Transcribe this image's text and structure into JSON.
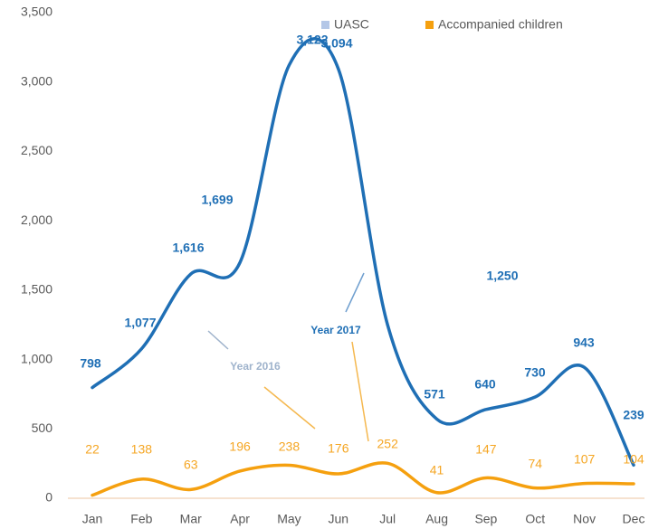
{
  "chart_data": {
    "type": "line",
    "categories": [
      "Jan",
      "Feb",
      "Mar",
      "Apr",
      "May",
      "Jun",
      "Jul",
      "Aug",
      "Sep",
      "Oct",
      "Nov",
      "Dec"
    ],
    "series": [
      {
        "name": "UASC",
        "color": "#1f6fb5",
        "legend_color": "#b4c7e7",
        "values": [
          798,
          1077,
          1616,
          1699,
          3122,
          3094,
          1250,
          571,
          640,
          730,
          943,
          239
        ],
        "value_labels": [
          "798",
          "1,077",
          "1,616",
          "1,699",
          "3,122",
          "3,094",
          "1,250",
          "571",
          "640",
          "730",
          "943",
          "239"
        ]
      },
      {
        "name": "Accompanied children",
        "color": "#f5a00f",
        "legend_color": "#f5a00f",
        "values": [
          22,
          138,
          63,
          196,
          238,
          176,
          252,
          41,
          147,
          74,
          107,
          104
        ]
      }
    ],
    "annotations": [
      "Year  2016",
      "Year  2017"
    ],
    "ylim": [
      0,
      3500
    ],
    "yticks": [
      0,
      500,
      {
        "value": 1000,
        "label": "1,000"
      },
      {
        "value": 1500,
        "label": "1,500"
      },
      {
        "value": 2000,
        "label": "2,000"
      },
      {
        "value": 2500,
        "label": "2,500"
      },
      {
        "value": 3000,
        "label": "3,000"
      },
      {
        "value": 3500,
        "label": "3,500"
      }
    ],
    "grid": false
  }
}
